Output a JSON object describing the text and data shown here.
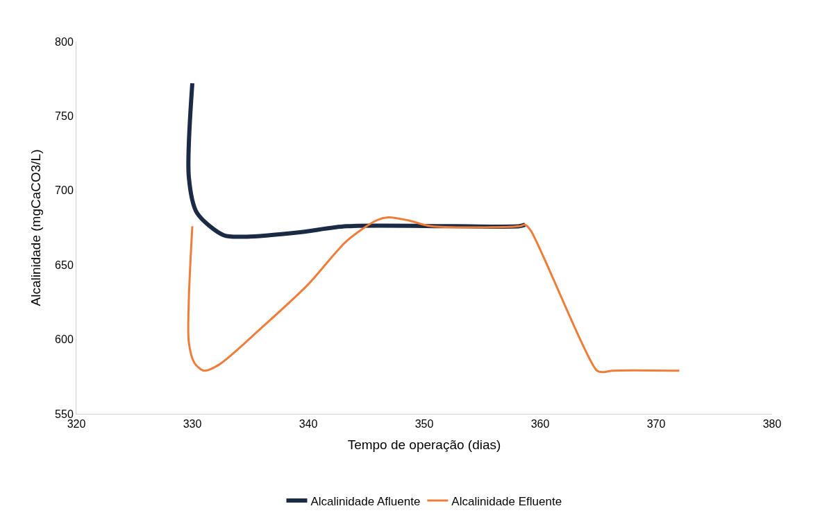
{
  "chart_data": {
    "type": "line",
    "xlabel": "Tempo de operação (dias)",
    "ylabel": "Alcalinidade (mgCaCO3/L)",
    "xlim": [
      320,
      380
    ],
    "xticks": [
      320,
      330,
      340,
      350,
      360,
      370,
      380
    ],
    "ylim": [
      550,
      800
    ],
    "yticks": [
      550,
      600,
      650,
      700,
      750,
      800
    ],
    "legend": "bottom",
    "marker": "none",
    "line_style": "solid",
    "series": [
      {
        "name": "Alcalinidade Afluente",
        "color": "#1b2a45",
        "x": [
          330,
          329.7,
          330.4,
          332.7,
          334.7,
          339.3,
          343.3,
          352.6,
          358.2,
          358.7
        ],
        "values": [
          772,
          709,
          685,
          670,
          669,
          672,
          676,
          676,
          676,
          677
        ]
      },
      {
        "name": "Alcalinidade Efluente",
        "color": "#ef7d3a",
        "x": [
          330,
          329.7,
          329.7,
          330.2,
          331,
          332.3,
          336,
          340,
          343.3,
          345.9,
          346.9,
          348.6,
          350.6,
          358.2,
          358.7,
          359.2,
          364.9,
          365.4,
          366.2,
          372
        ],
        "values": [
          676,
          627,
          598,
          584,
          579,
          583,
          608,
          637,
          666,
          680,
          682,
          680,
          676,
          676,
          677,
          673,
          579,
          578,
          579,
          579
        ]
      }
    ]
  }
}
